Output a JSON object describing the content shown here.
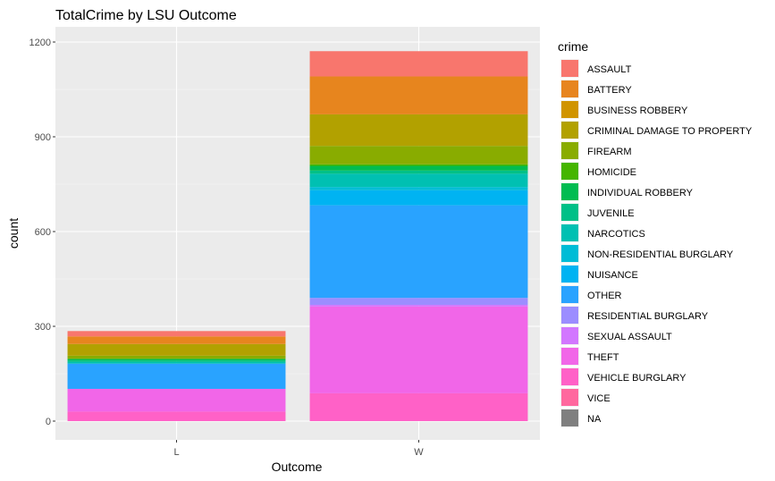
{
  "chart_data": {
    "type": "bar",
    "stacked": true,
    "title": "TotalCrime by LSU Outcome",
    "xlabel": "Outcome",
    "ylabel": "count",
    "categories": [
      "L",
      "W"
    ],
    "ylim": [
      0,
      1250
    ],
    "yticks": [
      0,
      300,
      600,
      900,
      1200
    ],
    "grid": true,
    "legend_title": "crime",
    "legend_position": "right",
    "series": [
      {
        "name": "ASSAULT",
        "color": "#F8766D",
        "values": [
          17,
          80
        ]
      },
      {
        "name": "BATTERY",
        "color": "#E7851E",
        "values": [
          24,
          120
        ]
      },
      {
        "name": "BUSINESS ROBBERY",
        "color": "#D09400",
        "values": [
          0,
          0
        ]
      },
      {
        "name": "CRIMINAL DAMAGE TO PROPERTY",
        "color": "#B2A100",
        "values": [
          37,
          100
        ]
      },
      {
        "name": "FIREARM",
        "color": "#89AC00",
        "values": [
          10,
          58
        ]
      },
      {
        "name": "HOMICIDE",
        "color": "#45B500",
        "values": [
          0,
          5
        ]
      },
      {
        "name": "INDIVIDUAL ROBBERY",
        "color": "#00BC51",
        "values": [
          5,
          15
        ]
      },
      {
        "name": "JUVENILE",
        "color": "#00C087",
        "values": [
          5,
          10
        ]
      },
      {
        "name": "NARCOTICS",
        "color": "#00C0B2",
        "values": [
          5,
          42
        ]
      },
      {
        "name": "NON-RESIDENTIAL BURGLARY",
        "color": "#00BCD6",
        "values": [
          0,
          10
        ]
      },
      {
        "name": "NUISANCE",
        "color": "#00B3F2",
        "values": [
          0,
          48
        ]
      },
      {
        "name": "OTHER",
        "color": "#29A3FF",
        "values": [
          80,
          293
        ]
      },
      {
        "name": "RESIDENTIAL BURGLARY",
        "color": "#9C8DFF",
        "values": [
          0,
          22
        ]
      },
      {
        "name": "SEXUAL ASSAULT",
        "color": "#D277FF",
        "values": [
          0,
          5
        ]
      },
      {
        "name": "THEFT",
        "color": "#F166E8",
        "values": [
          72,
          275
        ]
      },
      {
        "name": "VEHICLE BURGLARY",
        "color": "#FF61C7",
        "values": [
          30,
          88
        ]
      },
      {
        "name": "VICE",
        "color": "#FF689E",
        "values": [
          0,
          0
        ]
      },
      {
        "name": "NA",
        "color": "#7F7F7F",
        "values": [
          0,
          0
        ]
      }
    ]
  }
}
